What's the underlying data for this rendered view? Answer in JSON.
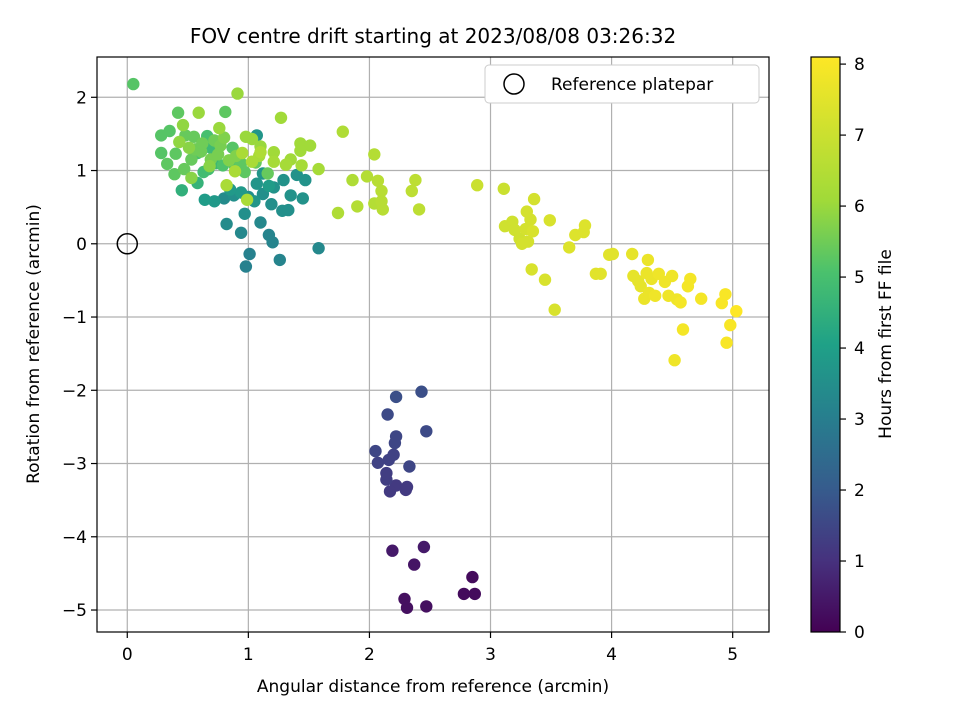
{
  "chart_data": {
    "type": "scatter",
    "title": "FOV centre drift starting at 2023/08/08 03:26:32",
    "xlabel": "Angular distance from reference (arcmin)",
    "ylabel": "Rotation from reference (arcmin)",
    "xlim": [
      -0.25,
      5.3
    ],
    "ylim": [
      -5.3,
      2.55
    ],
    "xticks": [
      0,
      1,
      2,
      3,
      4,
      5
    ],
    "yticks": [
      2,
      1,
      0,
      -1,
      -2,
      -3,
      -4,
      -5
    ],
    "ytick_labels": [
      "2",
      "1",
      "0",
      "−1",
      "−2",
      "−3",
      "−4",
      "−5"
    ],
    "grid": true,
    "legend": {
      "placement": "top-right",
      "label": "Reference platepar"
    },
    "reference_point": {
      "x": 0,
      "y": 0
    },
    "colorbar": {
      "label": "Hours from first FF file",
      "min": 0,
      "max": 8.1,
      "ticks": [
        0,
        1,
        2,
        3,
        4,
        5,
        6,
        7,
        8
      ],
      "colormap": "viridis"
    },
    "points": [
      [
        2.85,
        -4.55,
        0.2
      ],
      [
        2.78,
        -4.78,
        0.2
      ],
      [
        2.87,
        -4.78,
        0.2
      ],
      [
        2.47,
        -4.95,
        0.3
      ],
      [
        2.31,
        -4.97,
        0.3
      ],
      [
        2.29,
        -4.85,
        0.3
      ],
      [
        2.37,
        -4.38,
        0.4
      ],
      [
        2.19,
        -4.19,
        0.5
      ],
      [
        2.45,
        -4.14,
        0.5
      ],
      [
        2.22,
        -3.3,
        1.2
      ],
      [
        2.17,
        -3.38,
        1.2
      ],
      [
        2.3,
        -3.36,
        1.2
      ],
      [
        2.31,
        -3.32,
        1.2
      ],
      [
        2.14,
        -3.22,
        1.3
      ],
      [
        2.14,
        -3.13,
        1.3
      ],
      [
        2.2,
        -2.88,
        1.4
      ],
      [
        2.16,
        -2.95,
        1.4
      ],
      [
        2.07,
        -2.99,
        1.4
      ],
      [
        2.05,
        -2.83,
        1.5
      ],
      [
        2.21,
        -2.72,
        1.5
      ],
      [
        2.22,
        -2.63,
        1.5
      ],
      [
        2.33,
        -3.04,
        1.5
      ],
      [
        2.47,
        -2.56,
        1.6
      ],
      [
        2.15,
        -2.33,
        1.6
      ],
      [
        2.22,
        -2.09,
        1.7
      ],
      [
        2.43,
        -2.02,
        1.7
      ],
      [
        0.98,
        -0.31,
        3.1
      ],
      [
        1.01,
        -0.14,
        3.1
      ],
      [
        1.17,
        0.12,
        3.2
      ],
      [
        1.2,
        0.02,
        3.2
      ],
      [
        1.26,
        -0.22,
        3.2
      ],
      [
        0.94,
        0.15,
        3.3
      ],
      [
        1.1,
        0.29,
        3.3
      ],
      [
        1.58,
        -0.06,
        3.3
      ],
      [
        0.82,
        0.27,
        3.4
      ],
      [
        0.8,
        0.62,
        3.4
      ],
      [
        0.88,
        0.66,
        3.5
      ],
      [
        0.97,
        0.41,
        3.5
      ],
      [
        1.0,
        0.64,
        3.5
      ],
      [
        1.12,
        0.68,
        3.5
      ],
      [
        1.19,
        0.54,
        3.5
      ],
      [
        1.28,
        0.45,
        3.5
      ],
      [
        1.33,
        0.46,
        3.5
      ],
      [
        1.35,
        0.66,
        3.6
      ],
      [
        1.45,
        0.62,
        3.6
      ],
      [
        1.47,
        0.87,
        3.6
      ],
      [
        1.4,
        0.94,
        3.6
      ],
      [
        1.29,
        0.87,
        3.6
      ],
      [
        1.21,
        0.77,
        3.6
      ],
      [
        1.07,
        0.82,
        3.7
      ],
      [
        1.12,
        0.96,
        3.7
      ],
      [
        1.05,
        0.58,
        3.7
      ],
      [
        1.07,
        1.48,
        3.7
      ],
      [
        0.94,
        0.7,
        3.8
      ],
      [
        0.85,
        0.74,
        3.8
      ],
      [
        0.72,
        0.58,
        3.8
      ],
      [
        0.64,
        0.6,
        3.9
      ],
      [
        1.17,
        0.79,
        3.9
      ],
      [
        0.45,
        0.73,
        4.5
      ],
      [
        0.58,
        0.83,
        4.6
      ],
      [
        0.73,
        1.1,
        4.7
      ],
      [
        0.69,
        1.31,
        4.8
      ],
      [
        0.67,
        1.02,
        4.9
      ],
      [
        0.63,
        0.98,
        4.9
      ],
      [
        0.58,
        1.24,
        5.0
      ],
      [
        0.66,
        1.47,
        5.0
      ],
      [
        0.79,
        1.07,
        5.1
      ],
      [
        0.87,
        1.31,
        5.2
      ],
      [
        0.89,
        1.06,
        5.2
      ],
      [
        0.94,
        1.1,
        5.3
      ],
      [
        0.97,
        0.98,
        5.3
      ],
      [
        1.06,
        1.11,
        5.4
      ],
      [
        1.16,
        0.96,
        5.4
      ],
      [
        0.42,
        1.79,
        5.3
      ],
      [
        0.81,
        1.8,
        5.3
      ],
      [
        0.05,
        2.18,
        5.2
      ],
      [
        0.28,
        1.48,
        5.2
      ],
      [
        0.35,
        1.54,
        5.2
      ],
      [
        0.28,
        1.24,
        5.2
      ],
      [
        0.33,
        1.09,
        5.3
      ],
      [
        0.4,
        1.23,
        5.3
      ],
      [
        0.39,
        0.95,
        5.3
      ],
      [
        0.47,
        1.02,
        5.4
      ],
      [
        0.53,
        1.15,
        5.4
      ],
      [
        0.48,
        1.48,
        5.4
      ],
      [
        0.55,
        1.46,
        5.4
      ],
      [
        0.56,
        1.29,
        5.5
      ],
      [
        0.61,
        1.26,
        5.5
      ],
      [
        0.62,
        1.37,
        5.5
      ],
      [
        0.72,
        1.41,
        5.5
      ],
      [
        0.69,
        1.15,
        5.6
      ],
      [
        0.75,
        1.22,
        5.6
      ],
      [
        0.77,
        1.34,
        5.6
      ],
      [
        0.8,
        1.45,
        5.7
      ],
      [
        0.84,
        1.14,
        5.7
      ],
      [
        0.9,
        1.2,
        5.7
      ],
      [
        0.53,
        0.9,
        5.8
      ],
      [
        0.68,
        1.06,
        5.8
      ],
      [
        0.51,
        1.31,
        5.8
      ],
      [
        0.43,
        1.39,
        5.9
      ],
      [
        0.46,
        1.62,
        5.9
      ],
      [
        0.59,
        1.79,
        6.0
      ],
      [
        0.91,
        2.05,
        6.0
      ],
      [
        0.76,
        1.58,
        6.0
      ],
      [
        0.98,
        1.46,
        6.0
      ],
      [
        1.03,
        1.43,
        6.0
      ],
      [
        1.1,
        1.33,
        6.0
      ],
      [
        1.21,
        1.25,
        6.1
      ],
      [
        1.27,
        1.72,
        6.1
      ],
      [
        1.43,
        1.37,
        6.1
      ],
      [
        1.51,
        1.34,
        6.1
      ],
      [
        1.43,
        1.27,
        6.1
      ],
      [
        1.35,
        1.15,
        6.1
      ],
      [
        1.44,
        1.07,
        6.2
      ],
      [
        1.58,
        1.02,
        6.2
      ],
      [
        1.31,
        1.08,
        6.2
      ],
      [
        1.21,
        1.12,
        6.2
      ],
      [
        1.09,
        1.2,
        6.2
      ],
      [
        1.03,
        1.12,
        6.3
      ],
      [
        0.95,
        1.24,
        6.3
      ],
      [
        0.89,
        0.99,
        6.3
      ],
      [
        0.82,
        0.8,
        6.3
      ],
      [
        0.99,
        0.6,
        6.3
      ],
      [
        1.1,
        1.25,
        6.4
      ],
      [
        1.78,
        1.53,
        6.4
      ],
      [
        1.74,
        0.42,
        6.4
      ],
      [
        1.86,
        0.87,
        6.4
      ],
      [
        1.9,
        0.51,
        6.5
      ],
      [
        1.98,
        0.92,
        6.5
      ],
      [
        2.04,
        1.22,
        6.5
      ],
      [
        2.04,
        0.55,
        6.5
      ],
      [
        2.07,
        0.86,
        6.6
      ],
      [
        2.1,
        0.58,
        6.6
      ],
      [
        2.1,
        0.72,
        6.6
      ],
      [
        2.11,
        0.47,
        6.6
      ],
      [
        2.35,
        0.72,
        6.7
      ],
      [
        2.38,
        0.87,
        6.7
      ],
      [
        2.41,
        0.47,
        6.7
      ],
      [
        2.89,
        0.8,
        7.0
      ],
      [
        3.11,
        0.75,
        7.0
      ],
      [
        3.12,
        0.24,
        7.1
      ],
      [
        3.18,
        0.3,
        7.1
      ],
      [
        3.2,
        0.19,
        7.1
      ],
      [
        3.24,
        0.07,
        7.1
      ],
      [
        3.29,
        0.2,
        7.2
      ],
      [
        3.3,
        0.44,
        7.2
      ],
      [
        3.31,
        0.03,
        7.2
      ],
      [
        3.26,
        0.0,
        7.2
      ],
      [
        3.33,
        0.33,
        7.2
      ],
      [
        3.36,
        0.61,
        7.2
      ],
      [
        3.35,
        0.17,
        7.3
      ],
      [
        3.34,
        -0.35,
        7.3
      ],
      [
        3.45,
        -0.49,
        7.3
      ],
      [
        3.49,
        0.32,
        7.3
      ],
      [
        3.53,
        -0.9,
        7.3
      ],
      [
        3.65,
        -0.05,
        7.4
      ],
      [
        3.7,
        0.12,
        7.4
      ],
      [
        3.77,
        0.16,
        7.4
      ],
      [
        3.78,
        0.25,
        7.4
      ],
      [
        3.87,
        -0.41,
        7.5
      ],
      [
        3.91,
        -0.41,
        7.5
      ],
      [
        3.98,
        -0.15,
        7.5
      ],
      [
        4.01,
        -0.14,
        7.5
      ],
      [
        4.17,
        -0.14,
        7.6
      ],
      [
        4.18,
        -0.44,
        7.6
      ],
      [
        4.22,
        -0.51,
        7.6
      ],
      [
        4.24,
        -0.58,
        7.6
      ],
      [
        4.27,
        -0.75,
        7.7
      ],
      [
        4.29,
        -0.4,
        7.7
      ],
      [
        4.31,
        -0.67,
        7.7
      ],
      [
        4.3,
        -0.22,
        7.7
      ],
      [
        4.33,
        -0.48,
        7.7
      ],
      [
        4.36,
        -0.71,
        7.8
      ],
      [
        4.39,
        -0.41,
        7.8
      ],
      [
        4.44,
        -0.52,
        7.8
      ],
      [
        4.47,
        -0.71,
        7.8
      ],
      [
        4.5,
        -0.44,
        7.8
      ],
      [
        4.52,
        -1.59,
        7.8
      ],
      [
        4.54,
        -0.76,
        7.8
      ],
      [
        4.57,
        -0.8,
        7.9
      ],
      [
        4.59,
        -1.17,
        7.9
      ],
      [
        4.63,
        -0.58,
        7.9
      ],
      [
        4.65,
        -0.48,
        7.9
      ],
      [
        4.74,
        -0.75,
        7.9
      ],
      [
        4.91,
        -0.81,
        8.0
      ],
      [
        4.94,
        -0.69,
        8.0
      ],
      [
        4.95,
        -1.35,
        8.0
      ],
      [
        4.98,
        -1.11,
        8.0
      ],
      [
        5.03,
        -0.92,
        8.1
      ]
    ]
  }
}
